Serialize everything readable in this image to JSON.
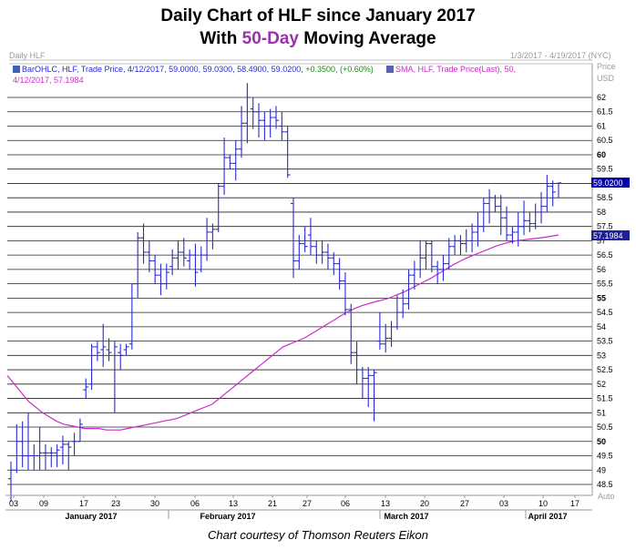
{
  "title_line1": "Daily Chart of HLF since January 2017",
  "title_line2_parts": [
    "With ",
    "50-Day",
    " Moving Average"
  ],
  "header": {
    "left_label": "Daily HLF",
    "date_range": "1/3/2017 - 4/19/2017 (NYC)",
    "price_label": "Price",
    "usd_label": "USD",
    "legend_bar": "BarOHLC, HLF, Trade Price, 4/12/2017, 59.0000, 59.0300, 58.4900, 59.0200, ",
    "legend_bar_change": "+0.3500, (+0.60%)",
    "legend_sma": "SMA, HLF, Trade Price(Last),  50,",
    "legend_sma_line2": "4/12/2017, 57.1984",
    "auto_label": "Auto"
  },
  "colors": {
    "bars": "#2a2ad2",
    "sma": "#cc2ccc",
    "grid": "#222222",
    "frame": "#9a9a9a",
    "change_green": "#1a8a1a",
    "last_price_tag": "#0000aa",
    "sma_tag": "#1f1f9a",
    "title_accent": "#9b2fae"
  },
  "chart_data": {
    "type": "ohlc",
    "y_ticks": [
      "62",
      "61.5",
      "61",
      "60.5",
      "60",
      "59.5",
      "59",
      "58.5",
      "58",
      "57.5",
      "57",
      "56.5",
      "56",
      "55.5",
      "55",
      "54.5",
      "54",
      "53.5",
      "53",
      "52.5",
      "52",
      "51.5",
      "51",
      "50.5",
      "50",
      "49.5",
      "49",
      "48.5"
    ],
    "y_ticks_bold": [
      "60",
      "55",
      "50"
    ],
    "ylim": [
      48.1,
      62.9
    ],
    "last_price": "59.0200",
    "sma_last": "57.1984",
    "x_ticks": [
      "03",
      "09",
      "17",
      "23",
      "30",
      "06",
      "13",
      "21",
      "27",
      "06",
      "13",
      "20",
      "27",
      "03",
      "10",
      "17"
    ],
    "months": [
      "January 2017",
      "February 2017",
      "March 2017",
      "April 2017"
    ],
    "bars": [
      {
        "date": "01-03",
        "o": 48.7,
        "h": 49.3,
        "l": 47.9,
        "c": 49.0
      },
      {
        "date": "01-04",
        "o": 49.0,
        "h": 50.6,
        "l": 48.9,
        "c": 50.0
      },
      {
        "date": "01-05",
        "o": 50.0,
        "h": 50.7,
        "l": 49.1,
        "c": 49.5
      },
      {
        "date": "01-06",
        "o": 49.5,
        "h": 51.0,
        "l": 49.0,
        "c": 49.5
      },
      {
        "date": "01-09",
        "o": 49.5,
        "h": 49.9,
        "l": 49.0,
        "c": 49.5
      },
      {
        "date": "01-10",
        "o": 49.5,
        "h": 50.5,
        "l": 49.0,
        "c": 49.6
      },
      {
        "date": "01-11",
        "o": 49.6,
        "h": 49.9,
        "l": 49.0,
        "c": 49.6
      },
      {
        "date": "01-12",
        "o": 49.6,
        "h": 49.8,
        "l": 49.1,
        "c": 49.6
      },
      {
        "date": "01-13",
        "o": 49.6,
        "h": 49.9,
        "l": 49.1,
        "c": 49.7
      },
      {
        "date": "01-17",
        "o": 49.8,
        "h": 50.2,
        "l": 49.2,
        "c": 49.9
      },
      {
        "date": "01-18",
        "o": 49.9,
        "h": 50.0,
        "l": 49.0,
        "c": 49.8
      },
      {
        "date": "01-19",
        "o": 50.0,
        "h": 50.3,
        "l": 49.5,
        "c": 50.0
      },
      {
        "date": "01-20",
        "o": 50.0,
        "h": 50.8,
        "l": 50.0,
        "c": 50.6
      },
      {
        "date": "01-23",
        "o": 51.8,
        "h": 52.2,
        "l": 51.5,
        "c": 51.9
      },
      {
        "date": "01-24",
        "o": 52.0,
        "h": 53.4,
        "l": 51.8,
        "c": 53.3
      },
      {
        "date": "01-25",
        "o": 53.3,
        "h": 53.5,
        "l": 52.8,
        "c": 53.1
      },
      {
        "date": "01-26",
        "o": 53.2,
        "h": 54.1,
        "l": 52.6,
        "c": 53.3
      },
      {
        "date": "01-27",
        "o": 53.2,
        "h": 53.6,
        "l": 52.8,
        "c": 53.1
      },
      {
        "date": "01-30",
        "o": 51.5,
        "h": 53.5,
        "l": 51.0,
        "c": 53.3
      },
      {
        "date": "01-31",
        "o": 53.1,
        "h": 53.4,
        "l": 52.5,
        "c": 53.0
      },
      {
        "date": "02-01",
        "o": 53.2,
        "h": 53.4,
        "l": 53.0,
        "c": 53.3
      },
      {
        "date": "02-02",
        "o": 53.4,
        "h": 55.5,
        "l": 53.2,
        "c": 55.5
      },
      {
        "date": "02-03",
        "o": 55.5,
        "h": 57.3,
        "l": 55.0,
        "c": 57.1
      },
      {
        "date": "02-06",
        "o": 57.1,
        "h": 57.6,
        "l": 56.2,
        "c": 56.6
      },
      {
        "date": "02-07",
        "o": 56.6,
        "h": 57.0,
        "l": 55.9,
        "c": 56.3
      },
      {
        "date": "02-08",
        "o": 56.3,
        "h": 56.5,
        "l": 55.5,
        "c": 55.8
      },
      {
        "date": "02-09",
        "o": 55.8,
        "h": 56.2,
        "l": 55.1,
        "c": 55.5
      },
      {
        "date": "02-10",
        "o": 55.5,
        "h": 56.2,
        "l": 55.3,
        "c": 55.9
      },
      {
        "date": "02-13",
        "o": 56.1,
        "h": 56.7,
        "l": 55.8,
        "c": 56.4
      },
      {
        "date": "02-14",
        "o": 56.4,
        "h": 57.0,
        "l": 56.0,
        "c": 56.6
      },
      {
        "date": "02-15",
        "o": 56.6,
        "h": 57.1,
        "l": 56.1,
        "c": 56.4
      },
      {
        "date": "02-16",
        "o": 56.3,
        "h": 56.7,
        "l": 56.0,
        "c": 56.5
      },
      {
        "date": "02-17",
        "o": 56.5,
        "h": 56.9,
        "l": 55.4,
        "c": 55.9
      },
      {
        "date": "02-21",
        "o": 56.0,
        "h": 56.8,
        "l": 55.9,
        "c": 56.5
      },
      {
        "date": "02-22",
        "o": 56.5,
        "h": 57.8,
        "l": 56.3,
        "c": 57.3
      },
      {
        "date": "02-23",
        "o": 57.3,
        "h": 57.6,
        "l": 56.7,
        "c": 57.4
      },
      {
        "date": "02-24",
        "o": 57.4,
        "h": 59.0,
        "l": 57.3,
        "c": 58.9
      },
      {
        "date": "02-27",
        "o": 58.9,
        "h": 60.6,
        "l": 58.6,
        "c": 59.9
      },
      {
        "date": "02-28",
        "o": 59.9,
        "h": 60.0,
        "l": 59.5,
        "c": 59.7
      },
      {
        "date": "03-01",
        "o": 59.7,
        "h": 60.5,
        "l": 59.1,
        "c": 60.2
      },
      {
        "date": "03-02",
        "o": 60.2,
        "h": 61.7,
        "l": 59.9,
        "c": 61.1
      },
      {
        "date": "03-03",
        "o": 61.1,
        "h": 62.5,
        "l": 60.4,
        "c": 62.0
      },
      {
        "date": "03-06",
        "o": 61.6,
        "h": 62.0,
        "l": 60.9,
        "c": 61.5
      },
      {
        "date": "03-07",
        "o": 61.5,
        "h": 61.8,
        "l": 60.6,
        "c": 61.2
      },
      {
        "date": "03-08",
        "o": 61.2,
        "h": 61.5,
        "l": 60.5,
        "c": 61.0
      },
      {
        "date": "03-09",
        "o": 61.0,
        "h": 61.6,
        "l": 60.6,
        "c": 61.3
      },
      {
        "date": "03-10",
        "o": 61.3,
        "h": 61.7,
        "l": 60.9,
        "c": 61.2
      },
      {
        "date": "03-13",
        "o": 61.0,
        "h": 61.5,
        "l": 60.5,
        "c": 60.8
      },
      {
        "date": "03-14",
        "o": 60.8,
        "h": 61.0,
        "l": 59.2,
        "c": 59.3
      },
      {
        "date": "03-15",
        "o": 58.3,
        "h": 58.5,
        "l": 55.7,
        "c": 56.3
      },
      {
        "date": "03-16",
        "o": 56.3,
        "h": 57.2,
        "l": 56.0,
        "c": 56.9
      },
      {
        "date": "03-17",
        "o": 56.9,
        "h": 57.5,
        "l": 56.6,
        "c": 56.8
      },
      {
        "date": "03-20",
        "o": 57.2,
        "h": 57.8,
        "l": 56.5,
        "c": 56.8
      },
      {
        "date": "03-21",
        "o": 56.8,
        "h": 57.0,
        "l": 56.2,
        "c": 56.5
      },
      {
        "date": "03-22",
        "o": 56.5,
        "h": 57.0,
        "l": 56.2,
        "c": 56.6
      },
      {
        "date": "03-23",
        "o": 56.6,
        "h": 56.9,
        "l": 56.0,
        "c": 56.4
      },
      {
        "date": "03-24",
        "o": 56.4,
        "h": 56.6,
        "l": 55.8,
        "c": 56.2
      },
      {
        "date": "03-27",
        "o": 56.2,
        "h": 56.4,
        "l": 55.3,
        "c": 55.6
      },
      {
        "date": "03-28",
        "o": 55.6,
        "h": 55.9,
        "l": 54.4,
        "c": 54.6
      },
      {
        "date": "03-29",
        "o": 54.6,
        "h": 54.8,
        "l": 52.7,
        "c": 53.1
      },
      {
        "date": "03-30",
        "o": 53.1,
        "h": 53.5,
        "l": 52.0,
        "c": 52.5
      },
      {
        "date": "03-31",
        "o": 52.5,
        "h": 52.6,
        "l": 51.5,
        "c": 52.2
      },
      {
        "date": "04-03",
        "o": 52.2,
        "h": 52.6,
        "l": 51.2,
        "c": 52.3
      },
      {
        "date": "04-04",
        "o": 52.3,
        "h": 52.5,
        "l": 50.7,
        "c": 52.4
      },
      {
        "date": "04-05",
        "o": 53.5,
        "h": 54.5,
        "l": 53.2,
        "c": 53.4
      },
      {
        "date": "04-06",
        "o": 53.4,
        "h": 54.1,
        "l": 53.1,
        "c": 53.6
      },
      {
        "date": "04-07",
        "o": 53.6,
        "h": 54.2,
        "l": 53.3,
        "c": 54.0
      },
      {
        "date": "04-10",
        "o": 54.0,
        "h": 55.1,
        "l": 53.9,
        "c": 54.5
      },
      {
        "date": "04-11",
        "o": 54.5,
        "h": 55.3,
        "l": 54.3,
        "c": 54.8
      },
      {
        "date": "04-12",
        "o": 54.8,
        "h": 56.0,
        "l": 54.6,
        "c": 55.8
      },
      {
        "date": "04-13",
        "o": 55.8,
        "h": 56.3,
        "l": 55.3,
        "c": 56.0
      },
      {
        "date": "04-17",
        "o": 56.0,
        "h": 57.0,
        "l": 55.7,
        "c": 56.4
      },
      {
        "date": "04-18",
        "o": 56.4,
        "h": 57.0,
        "l": 56.0,
        "c": 56.9
      },
      {
        "date": "04-19",
        "o": 56.9,
        "h": 57.0,
        "l": 55.9,
        "c": 56.1
      },
      {
        "date": "04-20",
        "o": 56.1,
        "h": 56.3,
        "l": 55.5,
        "c": 56.0
      },
      {
        "date": "04-21",
        "o": 56.0,
        "h": 56.5,
        "l": 55.6,
        "c": 56.2
      },
      {
        "date": "04-24",
        "o": 56.2,
        "h": 57.1,
        "l": 56.0,
        "c": 56.8
      },
      {
        "date": "04-25",
        "o": 56.8,
        "h": 57.2,
        "l": 56.5,
        "c": 57.0
      },
      {
        "date": "04-26",
        "o": 57.0,
        "h": 57.2,
        "l": 56.5,
        "c": 56.9
      },
      {
        "date": "04-27",
        "o": 56.9,
        "h": 57.4,
        "l": 56.6,
        "c": 57.0
      },
      {
        "date": "04-28",
        "o": 57.0,
        "h": 57.6,
        "l": 56.6,
        "c": 57.3
      },
      {
        "date": "04-29",
        "o": 57.3,
        "h": 58.0,
        "l": 56.8,
        "c": 57.5
      },
      {
        "date": "04-30",
        "o": 57.5,
        "h": 58.5,
        "l": 57.3,
        "c": 58.3
      },
      {
        "date": "05-01",
        "o": 58.3,
        "h": 58.8,
        "l": 57.6,
        "c": 58.5
      },
      {
        "date": "05-02",
        "o": 58.5,
        "h": 58.6,
        "l": 58.0,
        "c": 58.2
      },
      {
        "date": "05-03",
        "o": 58.2,
        "h": 58.6,
        "l": 57.2,
        "c": 57.8
      },
      {
        "date": "05-04",
        "o": 57.8,
        "h": 58.2,
        "l": 57.0,
        "c": 57.2
      },
      {
        "date": "05-05",
        "o": 57.2,
        "h": 57.5,
        "l": 56.9,
        "c": 57.3
      },
      {
        "date": "05-06",
        "o": 57.3,
        "h": 58.0,
        "l": 56.8,
        "c": 57.5
      },
      {
        "date": "05-07",
        "o": 57.5,
        "h": 58.4,
        "l": 57.2,
        "c": 57.7
      },
      {
        "date": "05-08",
        "o": 57.7,
        "h": 58.0,
        "l": 57.3,
        "c": 57.6
      },
      {
        "date": "05-09",
        "o": 57.6,
        "h": 58.3,
        "l": 57.4,
        "c": 58.0
      },
      {
        "date": "05-10",
        "o": 58.0,
        "h": 58.7,
        "l": 57.6,
        "c": 58.2
      },
      {
        "date": "05-11",
        "o": 58.2,
        "h": 59.3,
        "l": 58.0,
        "c": 58.9
      },
      {
        "date": "05-12",
        "o": 58.9,
        "h": 59.1,
        "l": 58.2,
        "c": 58.7
      },
      {
        "date": "05-13",
        "o": 59.0,
        "h": 59.03,
        "l": 58.49,
        "c": 59.02
      }
    ],
    "sma": [
      52.3,
      52.0,
      51.7,
      51.4,
      51.2,
      51.0,
      50.85,
      50.7,
      50.6,
      50.55,
      50.5,
      50.45,
      50.45,
      50.45,
      50.4,
      50.4,
      50.4,
      50.45,
      50.5,
      50.55,
      50.6,
      50.65,
      50.7,
      50.75,
      50.8,
      50.9,
      51.0,
      51.1,
      51.2,
      51.3,
      51.5,
      51.7,
      51.9,
      52.1,
      52.3,
      52.5,
      52.7,
      52.9,
      53.1,
      53.3,
      53.4,
      53.5,
      53.6,
      53.75,
      53.9,
      54.05,
      54.2,
      54.35,
      54.5,
      54.62,
      54.72,
      54.8,
      54.87,
      54.93,
      55.0,
      55.1,
      55.2,
      55.32,
      55.45,
      55.57,
      55.7,
      55.85,
      56.0,
      56.15,
      56.28,
      56.4,
      56.5,
      56.6,
      56.7,
      56.8,
      56.88,
      56.95,
      57.0,
      57.03,
      57.06,
      57.09,
      57.12,
      57.16,
      57.2
    ]
  },
  "footer": {
    "credit": "Chart courtesy of Thomson Reuters Eikon"
  }
}
